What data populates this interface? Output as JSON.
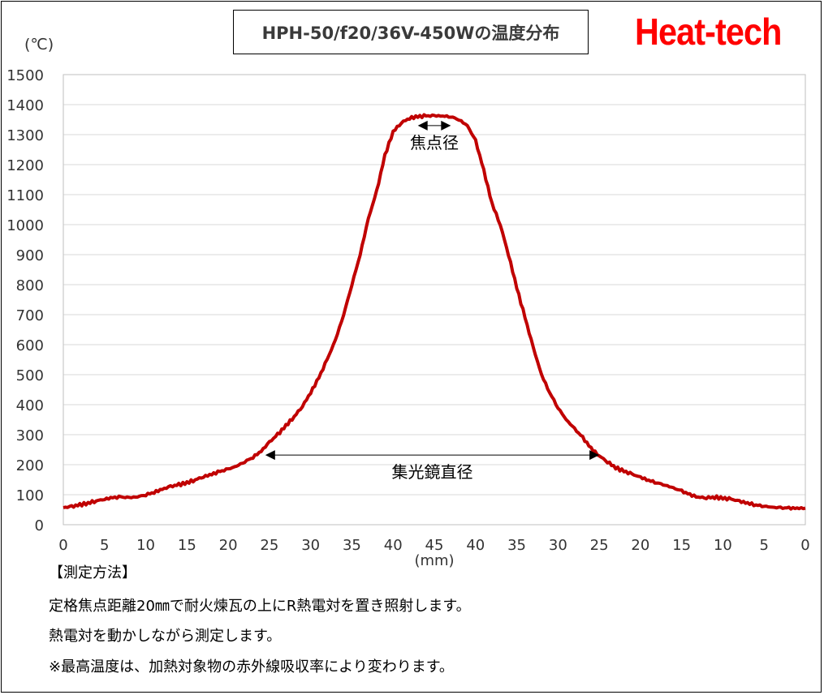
{
  "title": "HPH-50/f20/36V-450Wの温度分布",
  "brand": "Heat-tech",
  "y_unit": "(℃)",
  "x_unit": "(mm)",
  "colors": {
    "line": "#c00000",
    "grid": "#d9d9d9",
    "brand": "#ff0000"
  },
  "chart_data": {
    "type": "line",
    "title": "HPH-50/f20/36V-450Wの温度分布",
    "xlabel": "(mm)",
    "ylabel": "(℃)",
    "ylim": [
      0,
      1500
    ],
    "y_ticks": [
      0,
      100,
      200,
      300,
      400,
      500,
      600,
      700,
      800,
      900,
      1000,
      1100,
      1200,
      1300,
      1400,
      1500
    ],
    "x_tick_labels": [
      "0",
      "5",
      "10",
      "15",
      "20",
      "25",
      "30",
      "35",
      "40",
      "45",
      "40",
      "35",
      "30",
      "25",
      "20",
      "15",
      "10",
      "5",
      "0"
    ],
    "xlim": [
      0,
      90
    ],
    "grid": true,
    "series": [
      {
        "x": [
          0,
          1,
          2,
          3,
          4,
          5,
          6,
          7,
          8,
          9,
          10,
          11,
          12,
          13,
          14,
          15,
          16,
          17,
          18,
          19,
          20,
          21,
          22,
          23,
          24,
          25,
          26,
          27,
          28,
          29,
          30,
          31,
          32,
          33,
          34,
          35,
          36,
          37,
          38,
          39,
          40,
          41,
          42,
          43,
          44,
          45,
          46,
          47,
          48,
          49,
          50,
          51,
          52,
          53,
          54,
          55,
          56,
          57,
          58,
          59,
          60,
          61,
          62,
          63,
          64,
          65,
          66,
          67,
          68,
          69,
          70,
          71,
          72,
          73,
          74,
          75,
          76,
          77,
          78,
          79,
          80,
          81,
          82,
          83,
          84,
          85,
          86,
          87,
          88,
          89,
          90
        ],
        "values": [
          57,
          60,
          66,
          72,
          80,
          85,
          90,
          92,
          90,
          93,
          100,
          108,
          118,
          127,
          133,
          140,
          150,
          160,
          168,
          177,
          185,
          195,
          210,
          225,
          245,
          275,
          300,
          330,
          360,
          395,
          440,
          490,
          550,
          615,
          700,
          800,
          900,
          1020,
          1110,
          1230,
          1310,
          1340,
          1355,
          1360,
          1362,
          1363,
          1362,
          1360,
          1350,
          1330,
          1280,
          1180,
          1070,
          1000,
          900,
          790,
          690,
          590,
          500,
          440,
          390,
          350,
          320,
          290,
          255,
          230,
          210,
          190,
          178,
          168,
          158,
          148,
          140,
          132,
          122,
          112,
          100,
          92,
          90,
          92,
          88,
          85,
          78,
          72,
          66,
          62,
          58,
          56,
          55,
          55,
          55
        ]
      }
    ],
    "annotations": [
      {
        "label": "焦点径",
        "from_x": 43,
        "to_x": 47,
        "y": 1330
      },
      {
        "label": "集光鏡直径",
        "from_x": 24.5,
        "to_x": 65,
        "y": 232
      }
    ]
  },
  "notes": {
    "heading": "【測定方法】",
    "lines": [
      "定格焦点距離20㎜で耐火煉瓦の上にR熱電対を置き照射します。",
      "熱電対を動かしながら測定します。",
      "※最高温度は、加熱対象物の赤外線吸収率により変わります。"
    ]
  }
}
